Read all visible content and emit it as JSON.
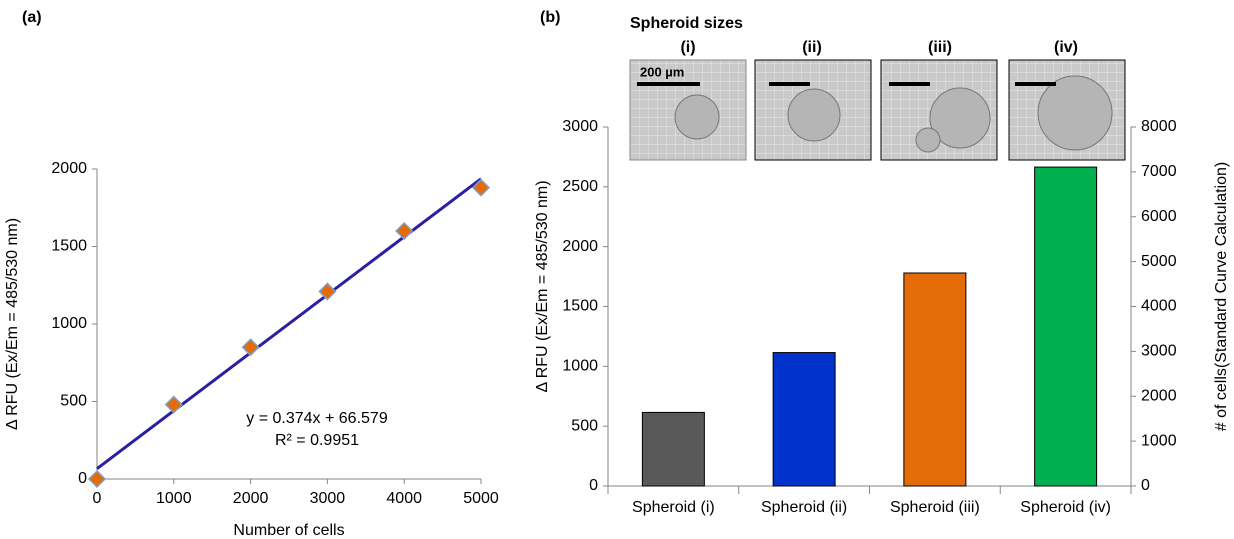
{
  "chart_data": [
    {
      "type": "scatter",
      "panel_label": "(a)",
      "x_label": "Number of cells",
      "y_label": "Δ RFU (Ex/Em = 485/530 nm)",
      "x": [
        0,
        1000,
        2000,
        3000,
        4000,
        5000
      ],
      "values": [
        0,
        480,
        850,
        1210,
        1600,
        1880
      ],
      "color": "#e36c09",
      "edge_color": "#7f9fc8",
      "trendline": {
        "slope": 0.374,
        "intercept": 66.579,
        "color": "#2a1fa3"
      },
      "annotations": [
        "y = 0.374x + 66.579",
        "R² = 0.9951"
      ],
      "xlim": [
        0,
        5000
      ],
      "xticks": [
        0,
        1000,
        2000,
        3000,
        4000,
        5000
      ],
      "ylim": [
        0,
        2000
      ],
      "yticks": [
        0,
        500,
        1000,
        1500,
        2000
      ],
      "grid": false
    },
    {
      "type": "bar",
      "panel_label": "(b)",
      "title": "Spheroid sizes",
      "image_labels": [
        "(i)",
        "(ii)",
        "(iii)",
        "(iv)"
      ],
      "scale_bar_label": "200 µm",
      "y_label": "Δ RFU (Ex/Em = 485/530 nm)",
      "y2_label": "# of cells(Standard Curve Calculation)",
      "categories": [
        "Spheroid (i)",
        "Spheroid (ii)",
        "Spheroid (iii)",
        "Spheroid (iv)"
      ],
      "values": [
        615,
        1115,
        1780,
        2665
      ],
      "colors": [
        "#595959",
        "#0033cc",
        "#e36c09",
        "#00b050"
      ],
      "ylim": [
        0,
        3000
      ],
      "yticks": [
        0,
        500,
        1000,
        1500,
        2000,
        2500,
        3000
      ],
      "y2lim": [
        0,
        8000
      ],
      "y2ticks": [
        0,
        1000,
        2000,
        3000,
        4000,
        5000,
        6000,
        7000,
        8000
      ],
      "grid": false
    }
  ]
}
